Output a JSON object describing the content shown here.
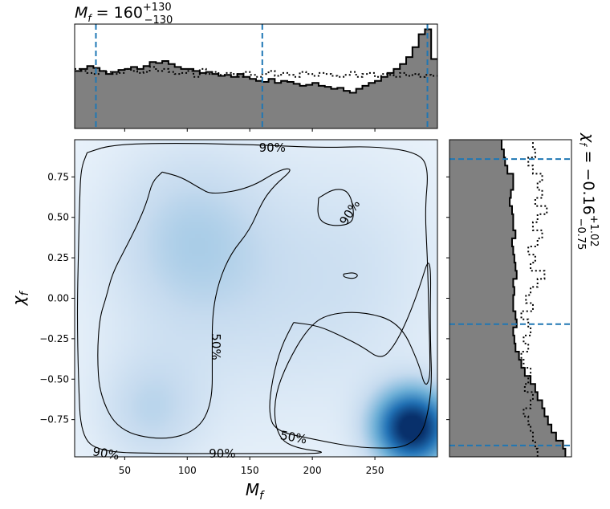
{
  "chart_data": [
    {
      "type": "histogram",
      "panel": "top-marginal",
      "title": {
        "base": "M",
        "sub": "f",
        "eq": " = 160",
        "sup": "+130",
        "lo": "−130"
      },
      "xlim": [
        10,
        300
      ],
      "bins_x": [
        10,
        15,
        20,
        25,
        30,
        35,
        40,
        45,
        50,
        55,
        60,
        65,
        70,
        75,
        80,
        85,
        90,
        95,
        100,
        105,
        110,
        115,
        120,
        125,
        130,
        135,
        140,
        145,
        150,
        155,
        160,
        165,
        170,
        175,
        180,
        185,
        190,
        195,
        200,
        205,
        210,
        215,
        220,
        225,
        230,
        235,
        240,
        245,
        250,
        255,
        260,
        265,
        270,
        275,
        280,
        285,
        290,
        295,
        300
      ],
      "posterior": [
        0.58,
        0.6,
        0.63,
        0.61,
        0.58,
        0.55,
        0.57,
        0.59,
        0.6,
        0.62,
        0.6,
        0.63,
        0.67,
        0.66,
        0.68,
        0.65,
        0.62,
        0.6,
        0.6,
        0.58,
        0.56,
        0.57,
        0.55,
        0.53,
        0.54,
        0.52,
        0.55,
        0.52,
        0.5,
        0.48,
        0.47,
        0.5,
        0.46,
        0.48,
        0.47,
        0.45,
        0.43,
        0.44,
        0.46,
        0.43,
        0.42,
        0.4,
        0.41,
        0.38,
        0.36,
        0.4,
        0.43,
        0.46,
        0.48,
        0.52,
        0.56,
        0.6,
        0.65,
        0.72,
        0.82,
        0.95,
        1.0,
        0.7
      ],
      "prior": [
        0.6,
        0.58,
        0.56,
        0.55,
        0.58,
        0.57,
        0.55,
        0.56,
        0.6,
        0.58,
        0.56,
        0.57,
        0.62,
        0.58,
        0.6,
        0.57,
        0.55,
        0.56,
        0.58,
        0.52,
        0.6,
        0.55,
        0.57,
        0.54,
        0.56,
        0.55,
        0.52,
        0.57,
        0.54,
        0.52,
        0.55,
        0.58,
        0.53,
        0.56,
        0.54,
        0.52,
        0.57,
        0.55,
        0.53,
        0.56,
        0.55,
        0.53,
        0.52,
        0.54,
        0.57,
        0.52,
        0.55,
        0.56,
        0.52,
        0.55,
        0.54,
        0.52,
        0.56,
        0.53,
        0.55,
        0.52,
        0.54,
        0.53
      ],
      "quantiles": [
        27,
        160,
        292
      ]
    },
    {
      "type": "heatmap",
      "panel": "joint",
      "xlabel": {
        "base": "M",
        "sub": "f"
      },
      "ylabel": {
        "base": "χ",
        "sub": "f"
      },
      "xlim": [
        10,
        300
      ],
      "ylim": [
        -0.98,
        0.98
      ],
      "xticks": [
        "50",
        "100",
        "150",
        "200",
        "250"
      ],
      "xtick_values": [
        50,
        100,
        150,
        200,
        250
      ],
      "yticks": [
        "0.75",
        "0.50",
        "0.25",
        "0.00",
        "−0.25",
        "−0.50",
        "−0.75"
      ],
      "ytick_values": [
        0.75,
        0.5,
        0.25,
        0.0,
        -0.25,
        -0.5,
        -0.75
      ],
      "density_blobs": [
        {
          "x": 280,
          "y": -0.8,
          "sx": 22,
          "sy": 0.17,
          "w": 1.0
        },
        {
          "x": 70,
          "y": -0.7,
          "sx": 30,
          "sy": 0.25,
          "w": 0.18
        },
        {
          "x": 100,
          "y": 0.4,
          "sx": 45,
          "sy": 0.4,
          "w": 0.18
        },
        {
          "x": 150,
          "y": 0.0,
          "sx": 80,
          "sy": 0.6,
          "w": 0.12
        },
        {
          "x": 240,
          "y": 0.2,
          "sx": 50,
          "sy": 0.5,
          "w": 0.08
        }
      ],
      "contour_labels": [
        {
          "text": "90%",
          "x": 168,
          "y": 0.93,
          "rot": 0
        },
        {
          "text": "90%",
          "x": 230,
          "y": 0.53,
          "rot": -58
        },
        {
          "text": "50%",
          "x": 123,
          "y": -0.3,
          "rot": 90
        },
        {
          "text": "50%",
          "x": 185,
          "y": -0.86,
          "rot": 10
        },
        {
          "text": "90%",
          "x": 35,
          "y": -0.96,
          "rot": 10
        },
        {
          "text": "90%",
          "x": 128,
          "y": -0.96,
          "rot": 0
        }
      ],
      "contours": [
        {
          "level": "90%",
          "points": [
            [
              20,
              0.9
            ],
            [
              40,
              0.95
            ],
            [
              90,
              0.96
            ],
            [
              150,
              0.95
            ],
            [
              210,
              0.93
            ],
            [
              250,
              0.94
            ],
            [
              285,
              0.9
            ],
            [
              293,
              0.8
            ],
            [
              290,
              0.55
            ],
            [
              292,
              0.25
            ],
            [
              293,
              -0.05
            ],
            [
              294,
              -0.35
            ],
            [
              294,
              -0.5
            ],
            [
              290,
              -0.55
            ],
            [
              285,
              -0.4
            ],
            [
              270,
              -0.15
            ],
            [
              240,
              -0.08
            ],
            [
              210,
              -0.1
            ],
            [
              195,
              -0.2
            ],
            [
              180,
              -0.4
            ],
            [
              170,
              -0.6
            ],
            [
              170,
              -0.8
            ],
            [
              180,
              -0.92
            ],
            [
              220,
              -0.96
            ],
            [
              150,
              -0.96
            ],
            [
              80,
              -0.96
            ],
            [
              30,
              -0.95
            ],
            [
              15,
              -0.85
            ],
            [
              13,
              -0.5
            ],
            [
              12,
              -0.1
            ],
            [
              13,
              0.3
            ],
            [
              14,
              0.6
            ],
            [
              15,
              0.8
            ],
            [
              20,
              0.9
            ]
          ]
        },
        {
          "level": "90%-island",
          "points": [
            [
              205,
              0.62
            ],
            [
              218,
              0.68
            ],
            [
              230,
              0.66
            ],
            [
              234,
              0.5
            ],
            [
              228,
              0.45
            ],
            [
              212,
              0.45
            ],
            [
              204,
              0.5
            ],
            [
              205,
              0.62
            ]
          ]
        },
        {
          "level": "90%-small",
          "points": [
            [
              225,
              0.15
            ],
            [
              233,
              0.16
            ],
            [
              237,
              0.14
            ],
            [
              233,
              0.12
            ],
            [
              225,
              0.13
            ],
            [
              225,
              0.15
            ]
          ]
        },
        {
          "level": "50%",
          "points": [
            [
              80,
              0.78
            ],
            [
              95,
              0.75
            ],
            [
              110,
              0.68
            ],
            [
              120,
              0.64
            ],
            [
              150,
              0.68
            ],
            [
              175,
              0.8
            ],
            [
              185,
              0.8
            ],
            [
              170,
              0.7
            ],
            [
              160,
              0.6
            ],
            [
              150,
              0.42
            ],
            [
              135,
              0.28
            ],
            [
              125,
              0.1
            ],
            [
              120,
              -0.1
            ],
            [
              120,
              -0.35
            ],
            [
              120,
              -0.65
            ],
            [
              108,
              -0.82
            ],
            [
              80,
              -0.88
            ],
            [
              45,
              -0.82
            ],
            [
              30,
              -0.6
            ],
            [
              28,
              -0.35
            ],
            [
              30,
              -0.12
            ],
            [
              35,
              0.0
            ],
            [
              40,
              0.15
            ],
            [
              50,
              0.3
            ],
            [
              60,
              0.45
            ],
            [
              68,
              0.6
            ],
            [
              72,
              0.72
            ],
            [
              80,
              0.78
            ]
          ]
        },
        {
          "level": "50%-br",
          "points": [
            [
              185,
              -0.15
            ],
            [
              205,
              -0.17
            ],
            [
              225,
              -0.24
            ],
            [
              240,
              -0.3
            ],
            [
              255,
              -0.38
            ],
            [
              265,
              -0.3
            ],
            [
              275,
              -0.15
            ],
            [
              285,
              0.05
            ],
            [
              295,
              0.3
            ],
            [
              294,
              -0.2
            ],
            [
              296,
              -0.6
            ],
            [
              285,
              -0.92
            ],
            [
              240,
              -0.93
            ],
            [
              200,
              -0.87
            ],
            [
              170,
              -0.82
            ],
            [
              165,
              -0.7
            ],
            [
              168,
              -0.5
            ],
            [
              175,
              -0.3
            ],
            [
              185,
              -0.15
            ]
          ]
        }
      ]
    },
    {
      "type": "histogram",
      "panel": "right-marginal",
      "orientation": "horizontal",
      "title": {
        "base": "χ",
        "sub": "f",
        "eq": " = −0.16",
        "sup": "+1.02",
        "lo": "−0.75"
      },
      "ylim": [
        -0.98,
        0.98
      ],
      "bins_y": [
        -0.98,
        -0.93,
        -0.88,
        -0.83,
        -0.78,
        -0.73,
        -0.68,
        -0.63,
        -0.58,
        -0.53,
        -0.48,
        -0.43,
        -0.38,
        -0.33,
        -0.28,
        -0.23,
        -0.18,
        -0.13,
        -0.08,
        -0.03,
        0.02,
        0.07,
        0.12,
        0.17,
        0.22,
        0.27,
        0.32,
        0.37,
        0.42,
        0.47,
        0.52,
        0.57,
        0.62,
        0.67,
        0.72,
        0.77,
        0.82,
        0.87,
        0.92,
        0.98
      ],
      "posterior": [
        1.0,
        0.98,
        0.92,
        0.88,
        0.85,
        0.82,
        0.8,
        0.76,
        0.74,
        0.7,
        0.65,
        0.62,
        0.6,
        0.57,
        0.56,
        0.55,
        0.58,
        0.57,
        0.55,
        0.55,
        0.56,
        0.55,
        0.58,
        0.57,
        0.56,
        0.55,
        0.54,
        0.57,
        0.55,
        0.55,
        0.54,
        0.52,
        0.53,
        0.55,
        0.55,
        0.5,
        0.48,
        0.47,
        0.45
      ],
      "prior": [
        0.76,
        0.74,
        0.72,
        0.7,
        0.68,
        0.64,
        0.7,
        0.72,
        0.65,
        0.68,
        0.7,
        0.64,
        0.62,
        0.68,
        0.64,
        0.7,
        0.68,
        0.62,
        0.72,
        0.66,
        0.7,
        0.76,
        0.82,
        0.7,
        0.74,
        0.68,
        0.76,
        0.8,
        0.72,
        0.76,
        0.84,
        0.74,
        0.8,
        0.76,
        0.8,
        0.72,
        0.68,
        0.74,
        0.72
      ],
      "quantiles": [
        -0.91,
        -0.16,
        0.86
      ]
    }
  ],
  "style": {
    "hist_fill": "#808080",
    "quantile_color": "#1f77b4",
    "cmap_low": "#f7fbff",
    "cmap_high": "#08306b"
  }
}
